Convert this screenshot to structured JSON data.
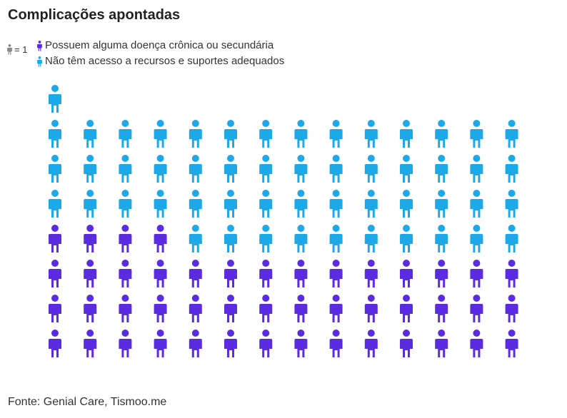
{
  "title": "Complicações apontadas",
  "scale": {
    "icon": "person-icon",
    "text": "= 1"
  },
  "colors": {
    "chronic": "#5b2be0",
    "access": "#1da8e8",
    "scale_icon": "#888888"
  },
  "legend": [
    {
      "label": "Possuem alguma doença crônica ou secundária",
      "icon": "person-icon"
    },
    {
      "label": "Não têm acesso a recursos e suportes adequados",
      "icon": "person-icon"
    }
  ],
  "chart_data": {
    "type": "pictogram",
    "title": "Complicações apontadas",
    "unit": 1,
    "columns": 14,
    "series": [
      {
        "name": "Possuem alguma doença crônica ou secundária",
        "value": 46
      },
      {
        "name": "Não têm acesso a recursos e suportes adequados",
        "value": 53
      }
    ],
    "legend_position": "top-left"
  },
  "source": "Fonte: Genial Care, Tismoo.me"
}
